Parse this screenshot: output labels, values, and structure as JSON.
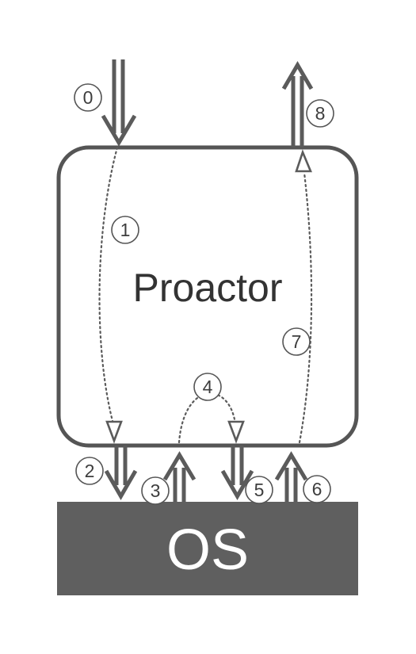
{
  "proactor": {
    "label": "Proactor"
  },
  "os": {
    "label": "OS"
  },
  "steps": {
    "s0": "0",
    "s1": "1",
    "s2": "2",
    "s3": "3",
    "s4": "4",
    "s5": "5",
    "s6": "6",
    "s7": "7",
    "s8": "8"
  },
  "colors": {
    "os_fill": "#5f5f5f",
    "stroke": "#5b5b5b",
    "box_border": "#555555",
    "text": "#333333"
  }
}
